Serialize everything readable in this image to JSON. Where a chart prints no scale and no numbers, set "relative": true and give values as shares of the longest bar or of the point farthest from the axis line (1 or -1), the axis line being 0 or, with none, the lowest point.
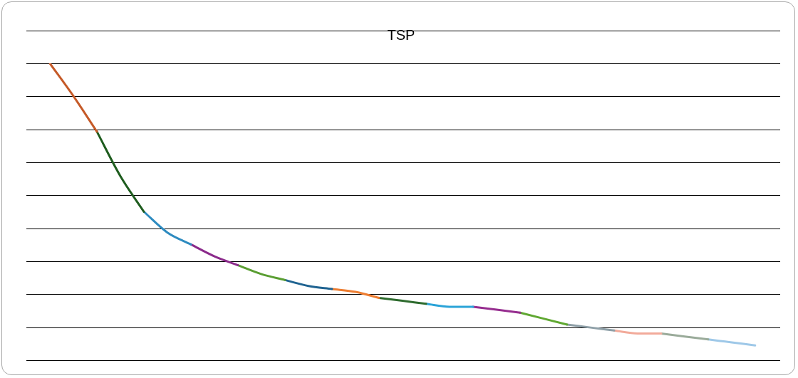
{
  "chart_data": {
    "type": "line",
    "title": "TSP",
    "relative": true,
    "grid": "y",
    "legend": false,
    "marker": "none",
    "line_style": "solid",
    "categories": [
      null,
      null,
      null,
      null,
      null,
      null,
      null,
      null,
      null,
      null,
      null,
      null,
      null,
      null,
      null,
      null,
      null,
      null,
      null,
      null,
      null,
      null,
      null,
      null,
      null,
      null,
      null,
      null,
      null,
      null,
      null
    ],
    "series": [
      {
        "color": "#c55a28",
        "values": [
          1.0,
          0.89,
          0.77,
          null,
          null,
          null,
          null,
          null,
          null,
          null,
          null,
          null,
          null,
          null,
          null,
          null,
          null,
          null,
          null,
          null,
          null,
          null,
          null,
          null,
          null,
          null,
          null,
          null,
          null,
          null,
          null
        ]
      },
      {
        "color": "#1e5c1e",
        "values": [
          null,
          null,
          0.77,
          0.62,
          0.5,
          null,
          null,
          null,
          null,
          null,
          null,
          null,
          null,
          null,
          null,
          null,
          null,
          null,
          null,
          null,
          null,
          null,
          null,
          null,
          null,
          null,
          null,
          null,
          null,
          null,
          null
        ]
      },
      {
        "color": "#2e8bc0",
        "values": [
          null,
          null,
          null,
          null,
          0.5,
          0.43,
          0.39,
          null,
          null,
          null,
          null,
          null,
          null,
          null,
          null,
          null,
          null,
          null,
          null,
          null,
          null,
          null,
          null,
          null,
          null,
          null,
          null,
          null,
          null,
          null,
          null
        ]
      },
      {
        "color": "#8b2a8b",
        "values": [
          null,
          null,
          null,
          null,
          null,
          null,
          0.39,
          0.35,
          0.32,
          null,
          null,
          null,
          null,
          null,
          null,
          null,
          null,
          null,
          null,
          null,
          null,
          null,
          null,
          null,
          null,
          null,
          null,
          null,
          null,
          null,
          null
        ]
      },
      {
        "color": "#5a9e32",
        "values": [
          null,
          null,
          null,
          null,
          null,
          null,
          null,
          null,
          0.32,
          0.29,
          0.27,
          null,
          null,
          null,
          null,
          null,
          null,
          null,
          null,
          null,
          null,
          null,
          null,
          null,
          null,
          null,
          null,
          null,
          null,
          null,
          null
        ]
      },
      {
        "color": "#1f6391",
        "values": [
          null,
          null,
          null,
          null,
          null,
          null,
          null,
          null,
          null,
          null,
          0.27,
          0.25,
          0.24,
          null,
          null,
          null,
          null,
          null,
          null,
          null,
          null,
          null,
          null,
          null,
          null,
          null,
          null,
          null,
          null,
          null,
          null
        ]
      },
      {
        "color": "#ed7d31",
        "values": [
          null,
          null,
          null,
          null,
          null,
          null,
          null,
          null,
          null,
          null,
          null,
          null,
          0.24,
          0.23,
          0.21,
          null,
          null,
          null,
          null,
          null,
          null,
          null,
          null,
          null,
          null,
          null,
          null,
          null,
          null,
          null,
          null
        ]
      },
      {
        "color": "#2e6b2e",
        "values": [
          null,
          null,
          null,
          null,
          null,
          null,
          null,
          null,
          null,
          null,
          null,
          null,
          null,
          null,
          0.21,
          0.2,
          0.19,
          null,
          null,
          null,
          null,
          null,
          null,
          null,
          null,
          null,
          null,
          null,
          null,
          null,
          null
        ]
      },
      {
        "color": "#2aa3d8",
        "values": [
          null,
          null,
          null,
          null,
          null,
          null,
          null,
          null,
          null,
          null,
          null,
          null,
          null,
          null,
          null,
          null,
          0.19,
          0.18,
          0.18,
          null,
          null,
          null,
          null,
          null,
          null,
          null,
          null,
          null,
          null,
          null,
          null
        ]
      },
      {
        "color": "#962d8f",
        "values": [
          null,
          null,
          null,
          null,
          null,
          null,
          null,
          null,
          null,
          null,
          null,
          null,
          null,
          null,
          null,
          null,
          null,
          null,
          0.18,
          0.17,
          0.16,
          null,
          null,
          null,
          null,
          null,
          null,
          null,
          null,
          null,
          null
        ]
      },
      {
        "color": "#60a832",
        "values": [
          null,
          null,
          null,
          null,
          null,
          null,
          null,
          null,
          null,
          null,
          null,
          null,
          null,
          null,
          null,
          null,
          null,
          null,
          null,
          null,
          0.16,
          0.14,
          0.12,
          null,
          null,
          null,
          null,
          null,
          null,
          null,
          null
        ]
      },
      {
        "color": "#8fa0a8",
        "values": [
          null,
          null,
          null,
          null,
          null,
          null,
          null,
          null,
          null,
          null,
          null,
          null,
          null,
          null,
          null,
          null,
          null,
          null,
          null,
          null,
          null,
          null,
          0.12,
          0.11,
          0.1,
          null,
          null,
          null,
          null,
          null,
          null
        ]
      },
      {
        "color": "#f2aa9a",
        "values": [
          null,
          null,
          null,
          null,
          null,
          null,
          null,
          null,
          null,
          null,
          null,
          null,
          null,
          null,
          null,
          null,
          null,
          null,
          null,
          null,
          null,
          null,
          null,
          null,
          0.1,
          0.09,
          0.09,
          null,
          null,
          null,
          null
        ]
      },
      {
        "color": "#9aab9a",
        "values": [
          null,
          null,
          null,
          null,
          null,
          null,
          null,
          null,
          null,
          null,
          null,
          null,
          null,
          null,
          null,
          null,
          null,
          null,
          null,
          null,
          null,
          null,
          null,
          null,
          null,
          null,
          0.09,
          0.08,
          0.07,
          null,
          null
        ]
      },
      {
        "color": "#9ec8e8",
        "values": [
          null,
          null,
          null,
          null,
          null,
          null,
          null,
          null,
          null,
          null,
          null,
          null,
          null,
          null,
          null,
          null,
          null,
          null,
          null,
          null,
          null,
          null,
          null,
          null,
          null,
          null,
          null,
          null,
          0.07,
          0.06,
          0.05
        ]
      }
    ]
  }
}
